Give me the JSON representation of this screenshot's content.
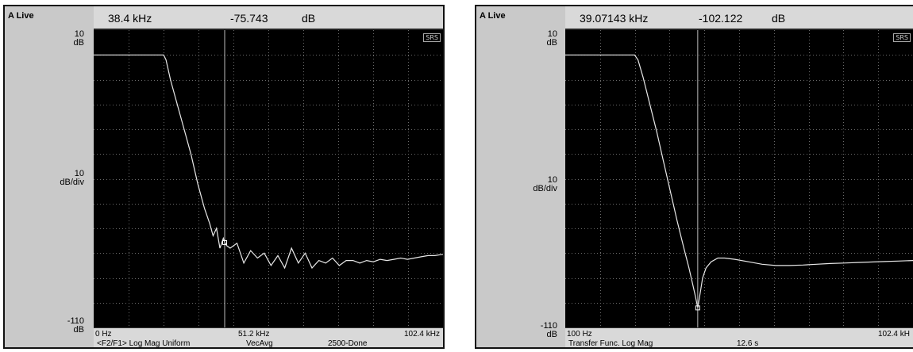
{
  "panels": [
    {
      "live_label": "A Live",
      "readout": {
        "freq": "38.4 kHz",
        "value": "-75.743",
        "unit": "dB"
      },
      "y_axis": {
        "top": "10",
        "top_unit": "dB",
        "mid": "10",
        "mid_unit": "dB/div",
        "bottom": "-110",
        "bottom_unit": "dB"
      },
      "footer": {
        "x_start": "0 Hz",
        "x_mid": "51.2 kHz",
        "x_end": "102.4 kHz",
        "measurement": "<F2/F1> Log Mag Uniform",
        "averaging": "VecAvg",
        "status": "2500-Done"
      },
      "badge": "SRS"
    },
    {
      "live_label": "A Live",
      "readout": {
        "freq": "39.07143 kHz",
        "value": "-102.122",
        "unit": "dB"
      },
      "y_axis": {
        "top": "10",
        "top_unit": "dB",
        "mid": "10",
        "mid_unit": "dB/div",
        "bottom": "-110",
        "bottom_unit": "dB"
      },
      "footer": {
        "x_start": "100 Hz",
        "x_end": "102.4 kH",
        "measurement": "Transfer Func. Log Mag",
        "time": "12.6 s"
      },
      "badge": "SRS"
    }
  ],
  "colors": {
    "trace": "#e8e8e8",
    "grid": "#6a6a6a",
    "plot_bg": "#000000",
    "marker": "#bdbdbd",
    "frame": "#c9c9c9"
  },
  "chart_data": [
    {
      "type": "line",
      "xlabel": "",
      "ylabel": "",
      "xlim": [
        0,
        102.4
      ],
      "ylim": [
        -110,
        10
      ],
      "grid": true,
      "marker": {
        "x": 38.4,
        "y": -75.743
      },
      "series": [
        {
          "x": [
            0,
            20.5,
            21.2,
            22.5,
            24.5,
            26.5,
            28.5,
            30.5,
            32.5,
            34,
            35,
            36,
            37,
            38,
            38.4,
            39,
            40,
            42,
            44,
            46,
            48,
            50,
            52,
            54,
            56,
            58,
            60,
            62,
            64,
            66,
            68,
            70,
            72,
            74,
            76,
            78,
            80,
            82,
            84,
            86,
            88,
            90,
            92,
            94,
            96,
            98,
            100,
            102.4
          ],
          "y": [
            0,
            0,
            -2,
            -10,
            -20,
            -30,
            -40,
            -52,
            -62,
            -68,
            -73,
            -70,
            -78,
            -74,
            -75.7,
            -77,
            -78,
            -76,
            -84,
            -79,
            -82,
            -80,
            -85,
            -81,
            -86,
            -78,
            -84,
            -80,
            -86,
            -83,
            -84,
            -82,
            -85,
            -83,
            -83,
            -84,
            -83,
            -83.5,
            -82.5,
            -83,
            -82.5,
            -82,
            -82.5,
            -82,
            -81.5,
            -81,
            -81,
            -80.5
          ]
        }
      ]
    },
    {
      "type": "line",
      "xlabel": "",
      "ylabel": "",
      "xlim": [
        0.1,
        102.4
      ],
      "ylim": [
        -110,
        10
      ],
      "grid": true,
      "marker": {
        "x": 39.07,
        "y": -102.122
      },
      "series": [
        {
          "x": [
            0.1,
            20.5,
            21.5,
            23,
            25,
            27,
            29,
            31,
            33,
            35,
            36.5,
            37.5,
            38.3,
            39.07,
            39.8,
            40.5,
            41.5,
            43,
            45,
            47,
            50,
            54,
            58,
            62,
            66,
            70,
            74,
            78,
            82,
            86,
            90,
            94,
            98,
            102.4
          ],
          "y": [
            0,
            0,
            -2,
            -9,
            -20,
            -31,
            -43,
            -55,
            -67,
            -78,
            -86,
            -92,
            -97,
            -102.1,
            -96,
            -90,
            -86,
            -83.5,
            -82,
            -82,
            -82.5,
            -83.5,
            -84.5,
            -85,
            -85,
            -84.8,
            -84.5,
            -84.2,
            -84,
            -83.8,
            -83.6,
            -83.4,
            -83.2,
            -83
          ]
        }
      ]
    }
  ]
}
